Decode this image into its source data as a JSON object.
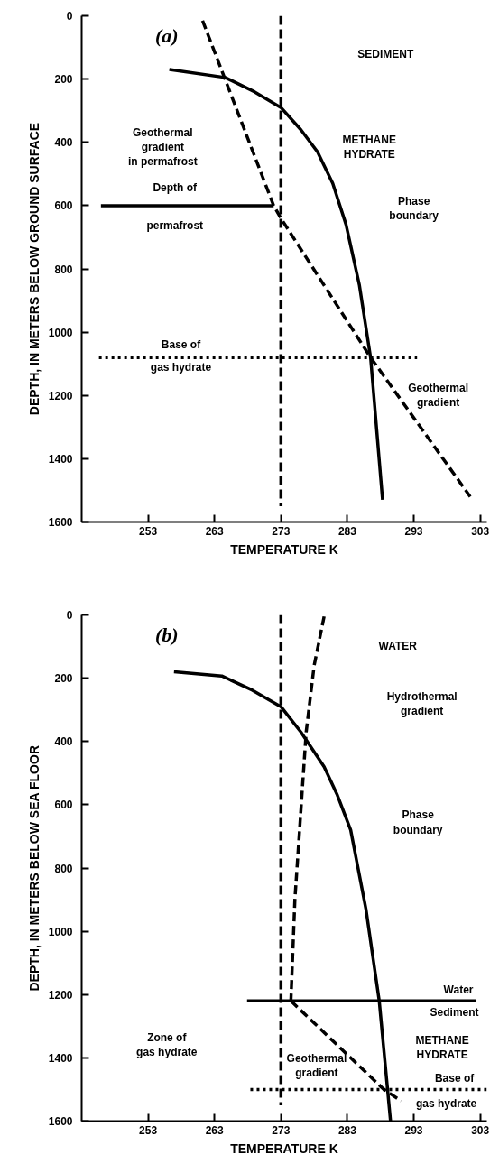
{
  "chart_data": [
    {
      "type": "line",
      "xlabel": "TEMPERATURE K",
      "ylabel": "DEPTH, IN METERS BELOW GROUND SURFACE",
      "xlim": [
        243,
        304
      ],
      "ylim": [
        1600,
        0
      ],
      "xticks": [
        253,
        263,
        273,
        283,
        293,
        303
      ],
      "yticks": [
        0,
        200,
        400,
        600,
        800,
        1000,
        1200,
        1400,
        1600
      ],
      "grid": false,
      "marker": "none",
      "series": [
        {
          "color": "#000000",
          "line_style": "solid",
          "x": [
            256.2,
            264.6,
            269,
            273,
            276,
            278.5,
            280.8,
            282.8,
            284.8,
            286.5,
            288.3
          ],
          "values": [
            170,
            195,
            240,
            290,
            360,
            430,
            530,
            660,
            850,
            1080,
            1530
          ]
        },
        {
          "color": "#000000",
          "line_style": "dashed",
          "x": [
            261.2,
            271.9,
            273,
            286.5,
            301.5
          ],
          "values": [
            15,
            600,
            640,
            1080,
            1520
          ]
        },
        {
          "color": "#000000",
          "line_style": "solid",
          "x": [
            245.9,
            271.9
          ],
          "values": [
            600,
            600
          ]
        },
        {
          "color": "#000000",
          "line_style": "dotted",
          "x": [
            245.6,
            293.5
          ],
          "values": [
            1080,
            1080
          ]
        },
        {
          "color": "#000000",
          "line_style": "dashed",
          "x": [
            273,
            273
          ],
          "values": [
            0,
            1550
          ]
        }
      ],
      "annotations": [
        "(a)",
        "SEDIMENT",
        "Geothermal\ngradient\nin permafrost",
        "METHANE\nHYDRATE",
        "Phase\nboundary",
        "Depth of",
        "permafrost",
        "Base of",
        "gas hydrate",
        "Geothermal\ngradient"
      ]
    },
    {
      "type": "line",
      "xlabel": "TEMPERATURE K",
      "ylabel": "DEPTH, IN METERS BELOW SEA FLOOR",
      "xlim": [
        243,
        304
      ],
      "ylim": [
        1600,
        0
      ],
      "xticks": [
        253,
        263,
        273,
        283,
        293,
        303
      ],
      "yticks": [
        0,
        200,
        400,
        600,
        800,
        1000,
        1200,
        1400,
        1600
      ],
      "grid": false,
      "marker": "none",
      "series": [
        {
          "color": "#000000",
          "line_style": "solid",
          "x": [
            256.9,
            264.1,
            268.7,
            273,
            276,
            279.5,
            281.5,
            283.5,
            285.8,
            287.8,
            289.5
          ],
          "values": [
            180,
            193,
            238,
            290,
            370,
            480,
            570,
            680,
            930,
            1220,
            1600
          ]
        },
        {
          "color": "#000000",
          "line_style": "dashed",
          "x": [
            279.5,
            278,
            276.8,
            275.1,
            274.5
          ],
          "values": [
            5,
            160,
            370,
            900,
            1220
          ]
        },
        {
          "color": "#000000",
          "line_style": "dashed",
          "x": [
            274.5,
            288.5,
            291.1
          ],
          "values": [
            1220,
            1500,
            1536
          ]
        },
        {
          "color": "#000000",
          "line_style": "solid",
          "x": [
            267.9,
            302.4
          ],
          "values": [
            1220,
            1220
          ]
        },
        {
          "color": "#000000",
          "line_style": "dotted",
          "x": [
            268.4,
            304
          ],
          "values": [
            1500,
            1500
          ]
        },
        {
          "color": "#000000",
          "line_style": "dashed",
          "x": [
            273,
            273
          ],
          "values": [
            0,
            1550
          ]
        }
      ],
      "annotations": [
        "(b)",
        "WATER",
        "Hydrothermal\ngradient",
        "Phase\nboundary",
        "Water",
        "Sediment",
        "METHANE\nHYDRATE",
        "Base of",
        "gas hydrate",
        "Zone of\ngas hydrate",
        "Geothermal\ngradient"
      ]
    }
  ]
}
